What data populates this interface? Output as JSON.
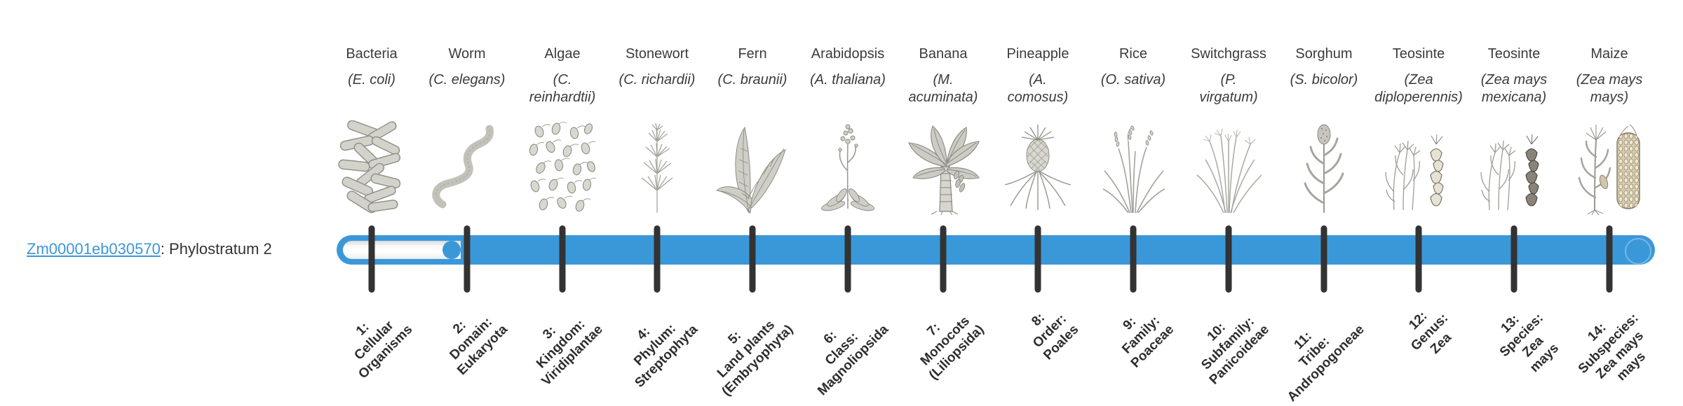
{
  "gene": {
    "id": "Zm00001eb030570",
    "suffix": ": Phylostratum 2",
    "phylostratum": 2
  },
  "colors": {
    "bar_fill": "#3b98d8",
    "tick": "#333333",
    "link": "#3b97d8",
    "label_text": "#3b3b3b"
  },
  "organisms": [
    {
      "common": "Bacteria",
      "species_lines": [
        "(E. coli)"
      ],
      "icon": "bacteria-icon"
    },
    {
      "common": "Worm",
      "species_lines": [
        "(C. elegans)"
      ],
      "icon": "worm-icon"
    },
    {
      "common": "Algae",
      "species_lines": [
        "(C.",
        "reinhardtii)"
      ],
      "icon": "algae-icon"
    },
    {
      "common": "Stonewort",
      "species_lines": [
        "(C. richardii)"
      ],
      "icon": "stonewort-icon"
    },
    {
      "common": "Fern",
      "species_lines": [
        "(C. braunii)"
      ],
      "icon": "fern-icon"
    },
    {
      "common": "Arabidopsis",
      "species_lines": [
        "(A. thaliana)"
      ],
      "icon": "arabidopsis-icon"
    },
    {
      "common": "Banana",
      "species_lines": [
        "(M.",
        "acuminata)"
      ],
      "icon": "banana-icon"
    },
    {
      "common": "Pineapple",
      "species_lines": [
        "(A.",
        "comosus)"
      ],
      "icon": "pineapple-icon"
    },
    {
      "common": "Rice",
      "species_lines": [
        "(O. sativa)"
      ],
      "icon": "rice-icon"
    },
    {
      "common": "Switchgrass",
      "species_lines": [
        "(P.",
        "virgatum)"
      ],
      "icon": "switchgrass-icon"
    },
    {
      "common": "Sorghum",
      "species_lines": [
        "(S. bicolor)"
      ],
      "icon": "sorghum-icon"
    },
    {
      "common": "Teosinte",
      "species_lines": [
        "(Zea",
        "diploperennis)"
      ],
      "icon": "teosinte-diploperennis-icon"
    },
    {
      "common": "Teosinte",
      "species_lines": [
        "(Zea mays",
        "mexicana)"
      ],
      "icon": "teosinte-mexicana-icon"
    },
    {
      "common": "Maize",
      "species_lines": [
        "(Zea mays",
        "mays)"
      ],
      "icon": "maize-icon"
    }
  ],
  "strata": [
    {
      "num": 1,
      "lines": [
        "1:",
        "Cellular",
        "Organisms"
      ]
    },
    {
      "num": 2,
      "lines": [
        "2:",
        "Domain:",
        "Eukaryota"
      ]
    },
    {
      "num": 3,
      "lines": [
        "3:",
        "Kingdom:",
        "Viridiplantae"
      ]
    },
    {
      "num": 4,
      "lines": [
        "4:",
        "Phylum:",
        "Streptophyta"
      ]
    },
    {
      "num": 5,
      "lines": [
        "5:",
        "Land plants",
        "(Embryophyta)"
      ]
    },
    {
      "num": 6,
      "lines": [
        "6:",
        "Class:",
        "Magnoliopsida"
      ]
    },
    {
      "num": 7,
      "lines": [
        "7:",
        "Monocots",
        "(Liliopsida)"
      ]
    },
    {
      "num": 8,
      "lines": [
        "8:",
        "Order:",
        "Poales"
      ]
    },
    {
      "num": 9,
      "lines": [
        "9:",
        "Family:",
        "Poaceae"
      ]
    },
    {
      "num": 10,
      "lines": [
        "10:",
        "Subfamily:",
        "Panicoideae"
      ]
    },
    {
      "num": 11,
      "lines": [
        "11:",
        "Tribe:",
        "Andropogoneae"
      ]
    },
    {
      "num": 12,
      "lines": [
        "12:",
        "Genus:",
        "Zea"
      ]
    },
    {
      "num": 13,
      "lines": [
        "13:",
        "Species:",
        "Zea",
        "mays"
      ]
    },
    {
      "num": 14,
      "lines": [
        "14:",
        "Subspecies:",
        "Zea mays",
        "mays"
      ]
    }
  ],
  "chart_data": {
    "type": "bar",
    "title": "Zm00001eb030570: Phylostratum 2",
    "gene_id": "Zm00001eb030570",
    "phylostratum_value": 2,
    "x_categories": [
      "1: Cellular Organisms",
      "2: Domain: Eukaryota",
      "3: Kingdom: Viridiplantae",
      "4: Phylum: Streptophyta",
      "5: Land plants (Embryophyta)",
      "6: Class: Magnoliopsida",
      "7: Monocots (Liliopsida)",
      "8: Order: Poales",
      "9: Family: Poaceae",
      "10: Subfamily: Panicoideae",
      "11: Tribe: Andropogoneae",
      "12: Genus: Zea",
      "13: Species: Zea mays",
      "14: Subspecies: Zea mays mays"
    ],
    "representative_organisms": [
      "Bacteria (E. coli)",
      "Worm (C. elegans)",
      "Algae (C. reinhardtii)",
      "Stonewort (C. richardii)",
      "Fern (C. braunii)",
      "Arabidopsis (A. thaliana)",
      "Banana (M. acuminata)",
      "Pineapple (A. comosus)",
      "Rice (O. sativa)",
      "Switchgrass (P. virgatum)",
      "Sorghum (S. bicolor)",
      "Teosinte (Zea diploperennis)",
      "Teosinte (Zea mays mexicana)",
      "Maize (Zea mays mays)"
    ],
    "bar_fill": {
      "unfilled_strata": [
        1
      ],
      "filled_strata_range": [
        2,
        14
      ],
      "fill_color": "#3b98d8"
    },
    "grid": false,
    "legend_position": "none"
  }
}
